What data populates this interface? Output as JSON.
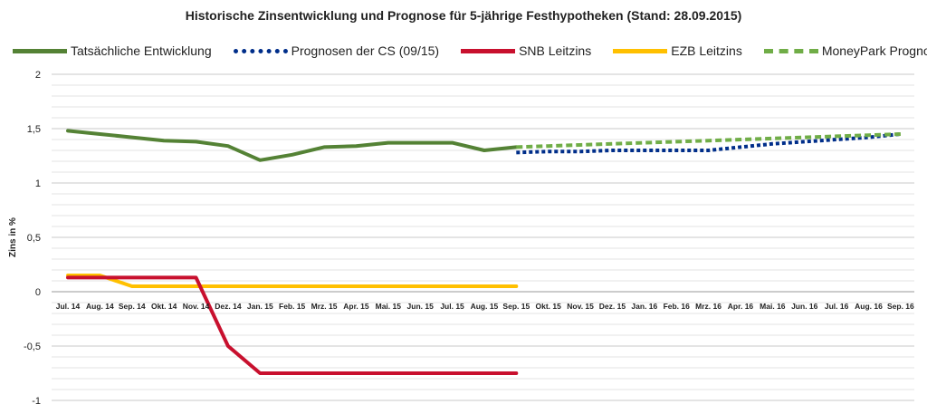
{
  "chart_data": {
    "type": "line",
    "title": "Historische Zinsentwicklung und Prognose für 5-jährige Festhypotheken (Stand: 28.09.2015)",
    "xlabel": "",
    "ylabel": "Zins in %",
    "ylim": [
      -1,
      2
    ],
    "y_ticks": [
      "2",
      "1,5",
      "1",
      "0,5",
      "0",
      "-0,5",
      "-1"
    ],
    "y_tick_values": [
      2,
      1.5,
      1,
      0.5,
      0,
      -0.5,
      -1
    ],
    "grid": true,
    "legend_position": "top",
    "categories": [
      "Jul. 14",
      "Aug. 14",
      "Sep. 14",
      "Okt. 14",
      "Nov. 14",
      "Dez. 14",
      "Jan. 15",
      "Feb. 15",
      "Mrz. 15",
      "Apr. 15",
      "Mai. 15",
      "Jun. 15",
      "Jul. 15",
      "Aug. 15",
      "Sep. 15",
      "Okt. 15",
      "Nov. 15",
      "Dez. 15",
      "Jan. 16",
      "Feb. 16",
      "Mrz. 16",
      "Apr. 16",
      "Mai. 16",
      "Jun. 16",
      "Jul. 16",
      "Aug. 16",
      "Sep. 16"
    ],
    "series": [
      {
        "name": "Tatsächliche Entwicklung",
        "color": "#548235",
        "style": "solid",
        "values": [
          1.48,
          1.45,
          1.42,
          1.39,
          1.38,
          1.34,
          1.21,
          1.26,
          1.33,
          1.34,
          1.37,
          1.37,
          1.37,
          1.3,
          1.33,
          null,
          null,
          null,
          null,
          null,
          null,
          null,
          null,
          null,
          null,
          null,
          null
        ]
      },
      {
        "name": "Prognosen der CS (09/15)",
        "color": "#002e8a",
        "style": "dotted",
        "values": [
          null,
          null,
          null,
          null,
          null,
          null,
          null,
          null,
          null,
          null,
          null,
          null,
          null,
          null,
          1.28,
          1.29,
          1.29,
          1.3,
          1.3,
          1.3,
          1.3,
          1.33,
          1.36,
          1.38,
          1.4,
          1.42,
          1.45
        ]
      },
      {
        "name": "SNB Leitzins",
        "color": "#c8102e",
        "style": "solid",
        "values": [
          0.13,
          0.13,
          0.13,
          0.13,
          0.13,
          -0.5,
          -0.75,
          -0.75,
          -0.75,
          -0.75,
          -0.75,
          -0.75,
          -0.75,
          -0.75,
          -0.75,
          null,
          null,
          null,
          null,
          null,
          null,
          null,
          null,
          null,
          null,
          null,
          null
        ]
      },
      {
        "name": "EZB Leitzins",
        "color": "#ffc000",
        "style": "solid",
        "values": [
          0.15,
          0.15,
          0.05,
          0.05,
          0.05,
          0.05,
          0.05,
          0.05,
          0.05,
          0.05,
          0.05,
          0.05,
          0.05,
          0.05,
          0.05,
          null,
          null,
          null,
          null,
          null,
          null,
          null,
          null,
          null,
          null,
          null,
          null
        ]
      },
      {
        "name": "MoneyPark Prognose",
        "color": "#70ad47",
        "style": "dashed",
        "values": [
          null,
          null,
          null,
          null,
          null,
          null,
          null,
          null,
          null,
          null,
          null,
          null,
          null,
          null,
          1.33,
          1.34,
          1.35,
          1.36,
          1.37,
          1.38,
          1.39,
          1.4,
          1.41,
          1.42,
          1.43,
          1.44,
          1.45
        ]
      }
    ]
  }
}
